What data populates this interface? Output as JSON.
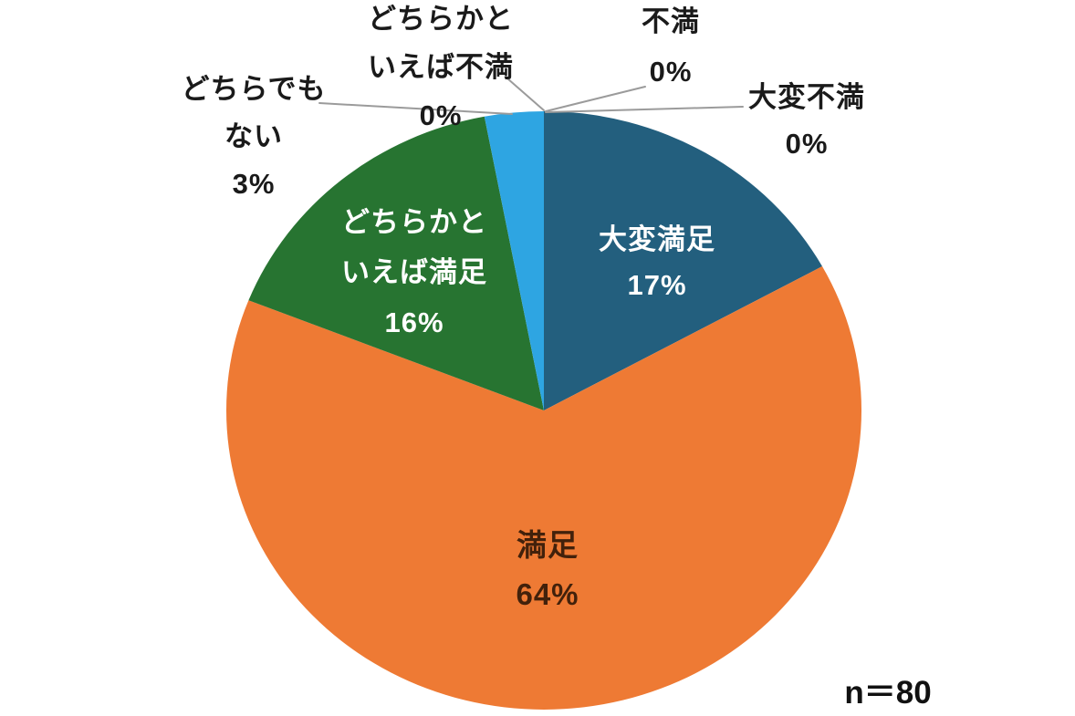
{
  "chart_data": {
    "type": "pie",
    "title": "",
    "sample_label": "n＝80",
    "sample_size": 80,
    "start_angle_deg": 0,
    "direction": "clockwise",
    "legend": "none",
    "background": "#FFFFFF",
    "leader_line_color": "#9B9B9B",
    "slices": [
      {
        "key": "very-satisfied",
        "label": "大変満足",
        "value": 17,
        "pct_text": "17%",
        "color": "#235F7E",
        "label_color": "#FFFFFF",
        "label_position": "inside"
      },
      {
        "key": "satisfied",
        "label": "満足",
        "value": 64,
        "pct_text": "64%",
        "color": "#EE7A34",
        "label_color": "#42210B",
        "label_position": "inside"
      },
      {
        "key": "somewhat-satisfied",
        "label": "どちらかといえば満足",
        "value": 16,
        "pct_text": "16%",
        "color": "#277431",
        "label_color": "#FFFFFF",
        "label_position": "inside"
      },
      {
        "key": "neither",
        "label": "どちらでもない",
        "value": 3,
        "pct_text": "3%",
        "color": "#2EA5E2",
        "label_color": "#1A1A1A",
        "label_position": "outside"
      },
      {
        "key": "somewhat-dissatisfied",
        "label": "どちらかといえば不満",
        "value": 0,
        "pct_text": "0%",
        "label_color": "#1A1A1A",
        "label_position": "outside"
      },
      {
        "key": "dissatisfied",
        "label": "不満",
        "value": 0,
        "pct_text": "0%",
        "label_color": "#1A1A1A",
        "label_position": "outside"
      },
      {
        "key": "very-dissatisfied",
        "label": "大変不満",
        "value": 0,
        "pct_text": "0%",
        "label_color": "#1A1A1A",
        "label_position": "outside"
      }
    ]
  },
  "labels": {
    "very_satisfied": {
      "name": "大変満足",
      "pct": "17%"
    },
    "satisfied": {
      "name": "満足",
      "pct": "64%"
    },
    "somewhat_satisfied": {
      "line1": "どちらかと",
      "line2": "いえば満足",
      "pct": "16%"
    },
    "neither": {
      "line1": "どちらでも",
      "line2": "ない",
      "pct": "3%"
    },
    "somewhat_dissatisfied": {
      "line1": "どちらかと",
      "line2": "いえば不満",
      "pct": "0%"
    },
    "dissatisfied": {
      "name": "不満",
      "pct": "0%"
    },
    "very_dissatisfied": {
      "name": "大変不満",
      "pct": "0%"
    },
    "sample": "n＝80"
  }
}
